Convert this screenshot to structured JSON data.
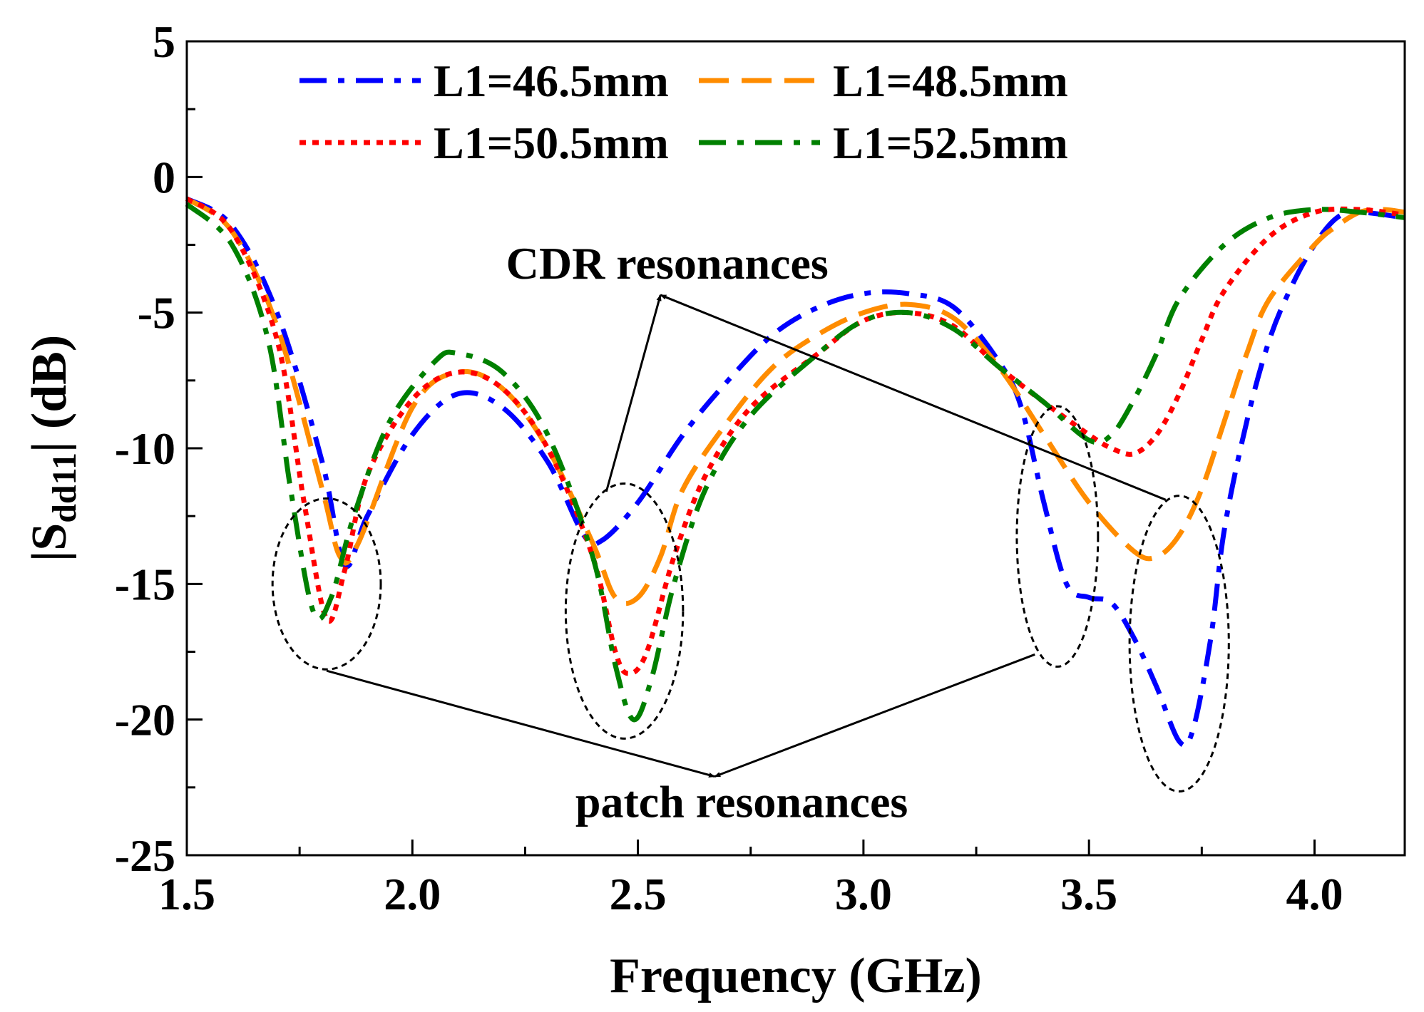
{
  "chart_data": {
    "type": "line",
    "xlabel": "Frequency (GHz)",
    "ylabel_prefix": "|S",
    "ylabel_sub": "dd11",
    "ylabel_suffix": "| (dB)",
    "xlim": [
      1.5,
      4.2
    ],
    "ylim": [
      -25,
      5
    ],
    "x_ticks": [
      "1.5",
      "2.0",
      "2.5",
      "3.0",
      "3.5",
      "4.0"
    ],
    "x_tick_values": [
      1.5,
      2.0,
      2.5,
      3.0,
      3.5,
      4.0
    ],
    "y_ticks": [
      "5",
      "0",
      "-5",
      "-10",
      "-15",
      "-20",
      "-25"
    ],
    "y_tick_values": [
      5,
      0,
      -5,
      -10,
      -15,
      -20,
      -25
    ],
    "grid": false,
    "legend_placement": "top-left",
    "series": [
      {
        "name": "L1=46.5mm",
        "color": "#0000ff",
        "dash": "dash-dot",
        "points": [
          [
            1.5,
            -0.8
          ],
          [
            1.6,
            -1.8
          ],
          [
            1.7,
            -5.0
          ],
          [
            1.8,
            -10.5
          ],
          [
            1.85,
            -14.3
          ],
          [
            1.9,
            -12.5
          ],
          [
            2.0,
            -9.5
          ],
          [
            2.1,
            -8.0
          ],
          [
            2.2,
            -8.5
          ],
          [
            2.3,
            -10.5
          ],
          [
            2.38,
            -13.2
          ],
          [
            2.42,
            -13.4
          ],
          [
            2.5,
            -12.0
          ],
          [
            2.6,
            -9.5
          ],
          [
            2.7,
            -7.5
          ],
          [
            2.8,
            -5.8
          ],
          [
            2.9,
            -4.8
          ],
          [
            3.0,
            -4.3
          ],
          [
            3.1,
            -4.3
          ],
          [
            3.2,
            -4.8
          ],
          [
            3.3,
            -6.8
          ],
          [
            3.35,
            -8.5
          ],
          [
            3.4,
            -12.0
          ],
          [
            3.45,
            -15.0
          ],
          [
            3.5,
            -15.5
          ],
          [
            3.55,
            -15.7
          ],
          [
            3.6,
            -17.0
          ],
          [
            3.65,
            -18.8
          ],
          [
            3.7,
            -20.8
          ],
          [
            3.73,
            -20.4
          ],
          [
            3.77,
            -17.0
          ],
          [
            3.8,
            -13.0
          ],
          [
            3.85,
            -9.0
          ],
          [
            3.9,
            -6.0
          ],
          [
            3.95,
            -4.0
          ],
          [
            4.0,
            -2.5
          ],
          [
            4.05,
            -1.5
          ],
          [
            4.1,
            -1.3
          ],
          [
            4.2,
            -1.5
          ]
        ]
      },
      {
        "name": "L1=48.5mm",
        "color": "#ff8c00",
        "dash": "dash",
        "points": [
          [
            1.5,
            -0.8
          ],
          [
            1.6,
            -2.0
          ],
          [
            1.7,
            -5.5
          ],
          [
            1.8,
            -11.5
          ],
          [
            1.84,
            -14.0
          ],
          [
            1.88,
            -13.5
          ],
          [
            2.0,
            -8.5
          ],
          [
            2.1,
            -7.2
          ],
          [
            2.2,
            -7.8
          ],
          [
            2.3,
            -10.0
          ],
          [
            2.4,
            -13.5
          ],
          [
            2.45,
            -15.5
          ],
          [
            2.5,
            -15.5
          ],
          [
            2.55,
            -14.0
          ],
          [
            2.6,
            -11.5
          ],
          [
            2.7,
            -9.0
          ],
          [
            2.8,
            -7.0
          ],
          [
            2.9,
            -5.8
          ],
          [
            3.0,
            -5.0
          ],
          [
            3.1,
            -4.7
          ],
          [
            3.2,
            -5.2
          ],
          [
            3.3,
            -7.0
          ],
          [
            3.4,
            -9.5
          ],
          [
            3.5,
            -12.0
          ],
          [
            3.6,
            -13.8
          ],
          [
            3.65,
            -14.0
          ],
          [
            3.7,
            -13.2
          ],
          [
            3.75,
            -11.5
          ],
          [
            3.8,
            -9.0
          ],
          [
            3.85,
            -6.5
          ],
          [
            3.9,
            -4.5
          ],
          [
            4.0,
            -2.5
          ],
          [
            4.05,
            -1.8
          ],
          [
            4.1,
            -1.3
          ],
          [
            4.15,
            -1.2
          ],
          [
            4.2,
            -1.3
          ]
        ]
      },
      {
        "name": "L1=50.5mm",
        "color": "#ff0000",
        "dash": "dot",
        "points": [
          [
            1.5,
            -0.8
          ],
          [
            1.6,
            -2.0
          ],
          [
            1.7,
            -6.0
          ],
          [
            1.76,
            -12.0
          ],
          [
            1.81,
            -16.3
          ],
          [
            1.85,
            -14.5
          ],
          [
            1.9,
            -11.0
          ],
          [
            2.0,
            -8.2
          ],
          [
            2.1,
            -7.2
          ],
          [
            2.2,
            -7.8
          ],
          [
            2.3,
            -10.0
          ],
          [
            2.4,
            -14.0
          ],
          [
            2.45,
            -17.5
          ],
          [
            2.48,
            -18.3
          ],
          [
            2.52,
            -17.5
          ],
          [
            2.58,
            -14.0
          ],
          [
            2.65,
            -11.0
          ],
          [
            2.75,
            -8.5
          ],
          [
            2.9,
            -6.5
          ],
          [
            3.0,
            -5.3
          ],
          [
            3.1,
            -5.0
          ],
          [
            3.2,
            -5.5
          ],
          [
            3.3,
            -7.0
          ],
          [
            3.4,
            -8.3
          ],
          [
            3.5,
            -9.5
          ],
          [
            3.55,
            -10.0
          ],
          [
            3.6,
            -10.2
          ],
          [
            3.65,
            -9.5
          ],
          [
            3.7,
            -8.0
          ],
          [
            3.75,
            -6.0
          ],
          [
            3.8,
            -4.2
          ],
          [
            3.9,
            -2.2
          ],
          [
            4.0,
            -1.3
          ],
          [
            4.1,
            -1.2
          ],
          [
            4.2,
            -1.4
          ]
        ]
      },
      {
        "name": "L1=52.5mm",
        "color": "#008000",
        "dash": "dash-dot",
        "points": [
          [
            1.5,
            -1.0
          ],
          [
            1.6,
            -2.5
          ],
          [
            1.68,
            -6.0
          ],
          [
            1.73,
            -11.5
          ],
          [
            1.78,
            -16.0
          ],
          [
            1.82,
            -15.5
          ],
          [
            1.87,
            -12.5
          ],
          [
            1.95,
            -9.0
          ],
          [
            2.05,
            -6.8
          ],
          [
            2.1,
            -6.5
          ],
          [
            2.2,
            -7.2
          ],
          [
            2.3,
            -9.5
          ],
          [
            2.4,
            -14.0
          ],
          [
            2.45,
            -18.0
          ],
          [
            2.49,
            -20.0
          ],
          [
            2.53,
            -18.5
          ],
          [
            2.58,
            -15.0
          ],
          [
            2.65,
            -11.5
          ],
          [
            2.75,
            -8.8
          ],
          [
            2.9,
            -6.5
          ],
          [
            3.0,
            -5.3
          ],
          [
            3.1,
            -5.0
          ],
          [
            3.2,
            -5.6
          ],
          [
            3.3,
            -7.0
          ],
          [
            3.4,
            -8.3
          ],
          [
            3.5,
            -9.7
          ],
          [
            3.55,
            -9.5
          ],
          [
            3.6,
            -8.2
          ],
          [
            3.65,
            -6.5
          ],
          [
            3.7,
            -4.5
          ],
          [
            3.8,
            -2.5
          ],
          [
            3.9,
            -1.5
          ],
          [
            4.0,
            -1.2
          ],
          [
            4.1,
            -1.3
          ],
          [
            4.2,
            -1.5
          ]
        ]
      }
    ],
    "annotations": {
      "cdr_label": "CDR resonances",
      "patch_label": "patch resonances"
    },
    "annotation_ellipses": [
      {
        "cx": 1.81,
        "cy": -15.0,
        "rx": 0.12,
        "ry": 3.15
      },
      {
        "cx": 2.47,
        "cy": -16.0,
        "rx": 0.13,
        "ry": 4.7
      },
      {
        "cx": 3.43,
        "cy": -13.25,
        "rx": 0.09,
        "ry": 4.8
      },
      {
        "cx": 3.7,
        "cy": -17.2,
        "rx": 0.11,
        "ry": 5.45
      }
    ],
    "cdr_arrow_tip": [
      2.55,
      -4.35
    ],
    "cdr_arrow_targets": [
      [
        2.43,
        -11.6
      ],
      [
        3.67,
        -11.9
      ]
    ],
    "patch_arrow_tip": [
      2.67,
      -22.1
    ],
    "patch_arrow_targets": [
      [
        1.81,
        -18.2
      ],
      [
        3.38,
        -17.6
      ]
    ]
  }
}
